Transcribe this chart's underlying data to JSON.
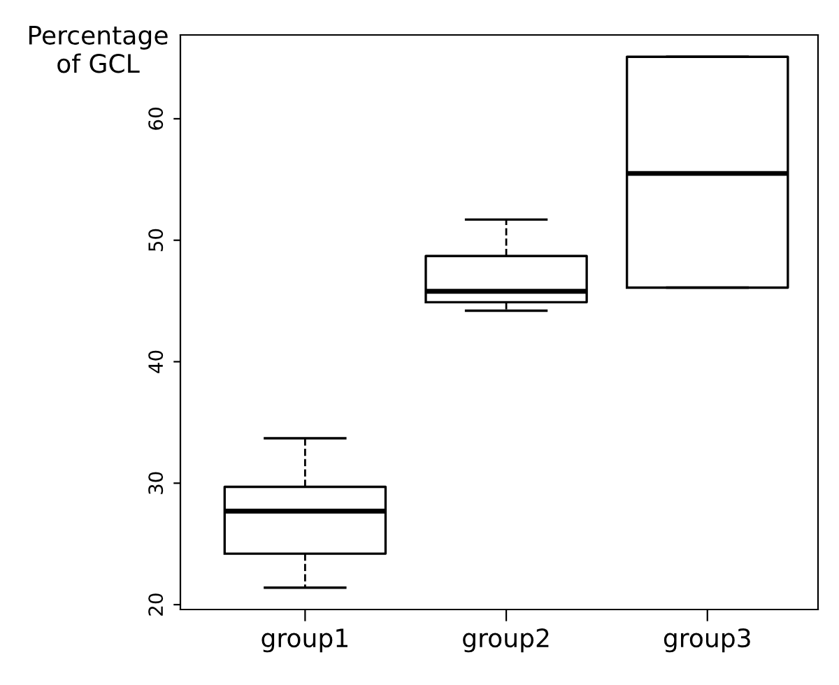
{
  "chart_data": {
    "type": "box",
    "ylabel": "Percentage\nof GCL",
    "categories": [
      "group1",
      "group2",
      "group3"
    ],
    "boxes": [
      {
        "low": 21.4,
        "q1": 24.2,
        "median": 27.7,
        "q3": 29.7,
        "high": 33.7
      },
      {
        "low": 44.2,
        "q1": 44.9,
        "median": 45.8,
        "q3": 48.7,
        "high": 51.7
      },
      {
        "low": 46.1,
        "q1": 46.1,
        "median": 55.5,
        "q3": 65.1,
        "high": 65.1
      }
    ],
    "ylim": [
      19.6,
      66.9
    ],
    "yticks": [
      20,
      30,
      40,
      50,
      60
    ],
    "grid": false
  }
}
